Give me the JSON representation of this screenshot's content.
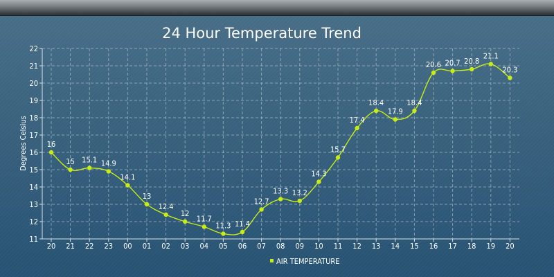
{
  "chart_data": {
    "type": "line",
    "title": "24 Hour Temperature Trend",
    "xlabel": "",
    "ylabel": "Degrees Celsius",
    "ylim": [
      11,
      22
    ],
    "y_ticks": [
      11,
      12,
      13,
      14,
      15,
      16,
      17,
      18,
      19,
      20,
      21,
      22
    ],
    "grid": true,
    "legend_position": "bottom",
    "categories": [
      "20",
      "21",
      "22",
      "23",
      "00",
      "01",
      "02",
      "03",
      "04",
      "05",
      "06",
      "07",
      "08",
      "09",
      "10",
      "11",
      "12",
      "13",
      "14",
      "15",
      "16",
      "17",
      "18",
      "19",
      "20"
    ],
    "series": [
      {
        "name": "AIR TEMPERATURE",
        "color": "#c8ec14",
        "values": [
          16,
          15,
          15.1,
          14.9,
          14.1,
          13,
          12.4,
          12,
          11.7,
          11.3,
          11.4,
          12.7,
          13.3,
          13.2,
          14.3,
          15.7,
          17.4,
          18.4,
          17.9,
          18.4,
          20.6,
          20.7,
          20.8,
          21.1,
          20.3
        ]
      }
    ],
    "data_labels": [
      "16",
      "15",
      "15.1",
      "14.9",
      "14.1",
      "13",
      "12.4",
      "12",
      "11.7",
      "11.3",
      "11.4",
      "12.7",
      "13.3",
      "13.2",
      "14.3",
      "15.7",
      "17.4",
      "18.4",
      "17.9",
      "18.4",
      "20.6",
      "20.7",
      "20.8",
      "21.1",
      "20.3"
    ]
  }
}
